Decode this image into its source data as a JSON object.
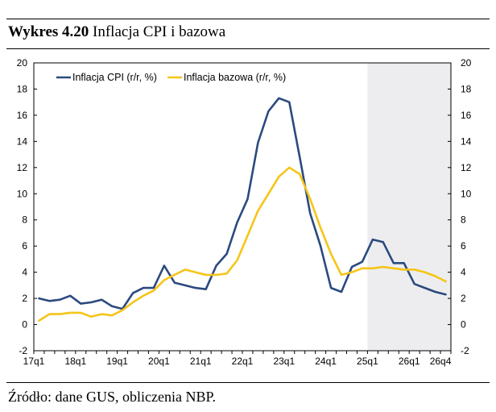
{
  "figure": {
    "title_bold": "Wykres 4.20",
    "title_rest": " Inflacja CPI i bazowa",
    "source": "Źródło: dane GUS, obliczenia NBP."
  },
  "chart_data": {
    "type": "line",
    "x": [
      "17q1",
      "17q2",
      "17q3",
      "17q4",
      "18q1",
      "18q2",
      "18q3",
      "18q4",
      "19q1",
      "19q2",
      "19q3",
      "19q4",
      "20q1",
      "20q2",
      "20q3",
      "20q4",
      "21q1",
      "21q2",
      "21q3",
      "21q4",
      "22q1",
      "22q2",
      "22q3",
      "22q4",
      "23q1",
      "23q2",
      "23q3",
      "23q4",
      "24q1",
      "24q2",
      "24q3",
      "24q4",
      "25q1",
      "25q2",
      "25q3",
      "25q4",
      "26q1",
      "26q2",
      "26q3",
      "26q4"
    ],
    "x_tick_labels": [
      "17q1",
      "18q1",
      "19q1",
      "20q1",
      "21q1",
      "22q1",
      "23q1",
      "24q1",
      "25q1",
      "26q1",
      "26q4"
    ],
    "series": [
      {
        "name": "Inflacja CPI (r/r, %)",
        "color": "#2b4a7e",
        "values": [
          2.0,
          1.8,
          1.9,
          2.2,
          1.6,
          1.7,
          1.9,
          1.4,
          1.2,
          2.4,
          2.8,
          2.8,
          4.5,
          3.2,
          3.0,
          2.8,
          2.7,
          4.5,
          5.4,
          7.8,
          9.6,
          13.9,
          16.3,
          17.3,
          17.0,
          12.8,
          8.5,
          6.0,
          2.8,
          2.5,
          4.4,
          4.8,
          6.5,
          6.3,
          4.7,
          4.7,
          3.1,
          2.8,
          2.5,
          2.3
        ]
      },
      {
        "name": "Inflacja bazowa (r/r, %)",
        "color": "#f5c518",
        "values": [
          0.3,
          0.8,
          0.8,
          0.9,
          0.9,
          0.6,
          0.8,
          0.7,
          1.1,
          1.7,
          2.2,
          2.6,
          3.4,
          3.8,
          4.2,
          4.0,
          3.8,
          3.8,
          3.9,
          4.9,
          6.8,
          8.7,
          10.0,
          11.3,
          12.0,
          11.5,
          9.6,
          7.4,
          5.4,
          3.8,
          4.0,
          4.3,
          4.3,
          4.4,
          4.3,
          4.2,
          4.2,
          4.0,
          3.7,
          3.3
        ]
      }
    ],
    "ylim": [
      -2,
      20
    ],
    "yticks": [
      -2,
      0,
      2,
      4,
      6,
      8,
      10,
      12,
      14,
      16,
      18,
      20
    ],
    "grid": false,
    "legend": "top-left",
    "projection_start": "25q1",
    "projection_shade_color": "#ededef",
    "xlabel": "",
    "ylabel": ""
  }
}
